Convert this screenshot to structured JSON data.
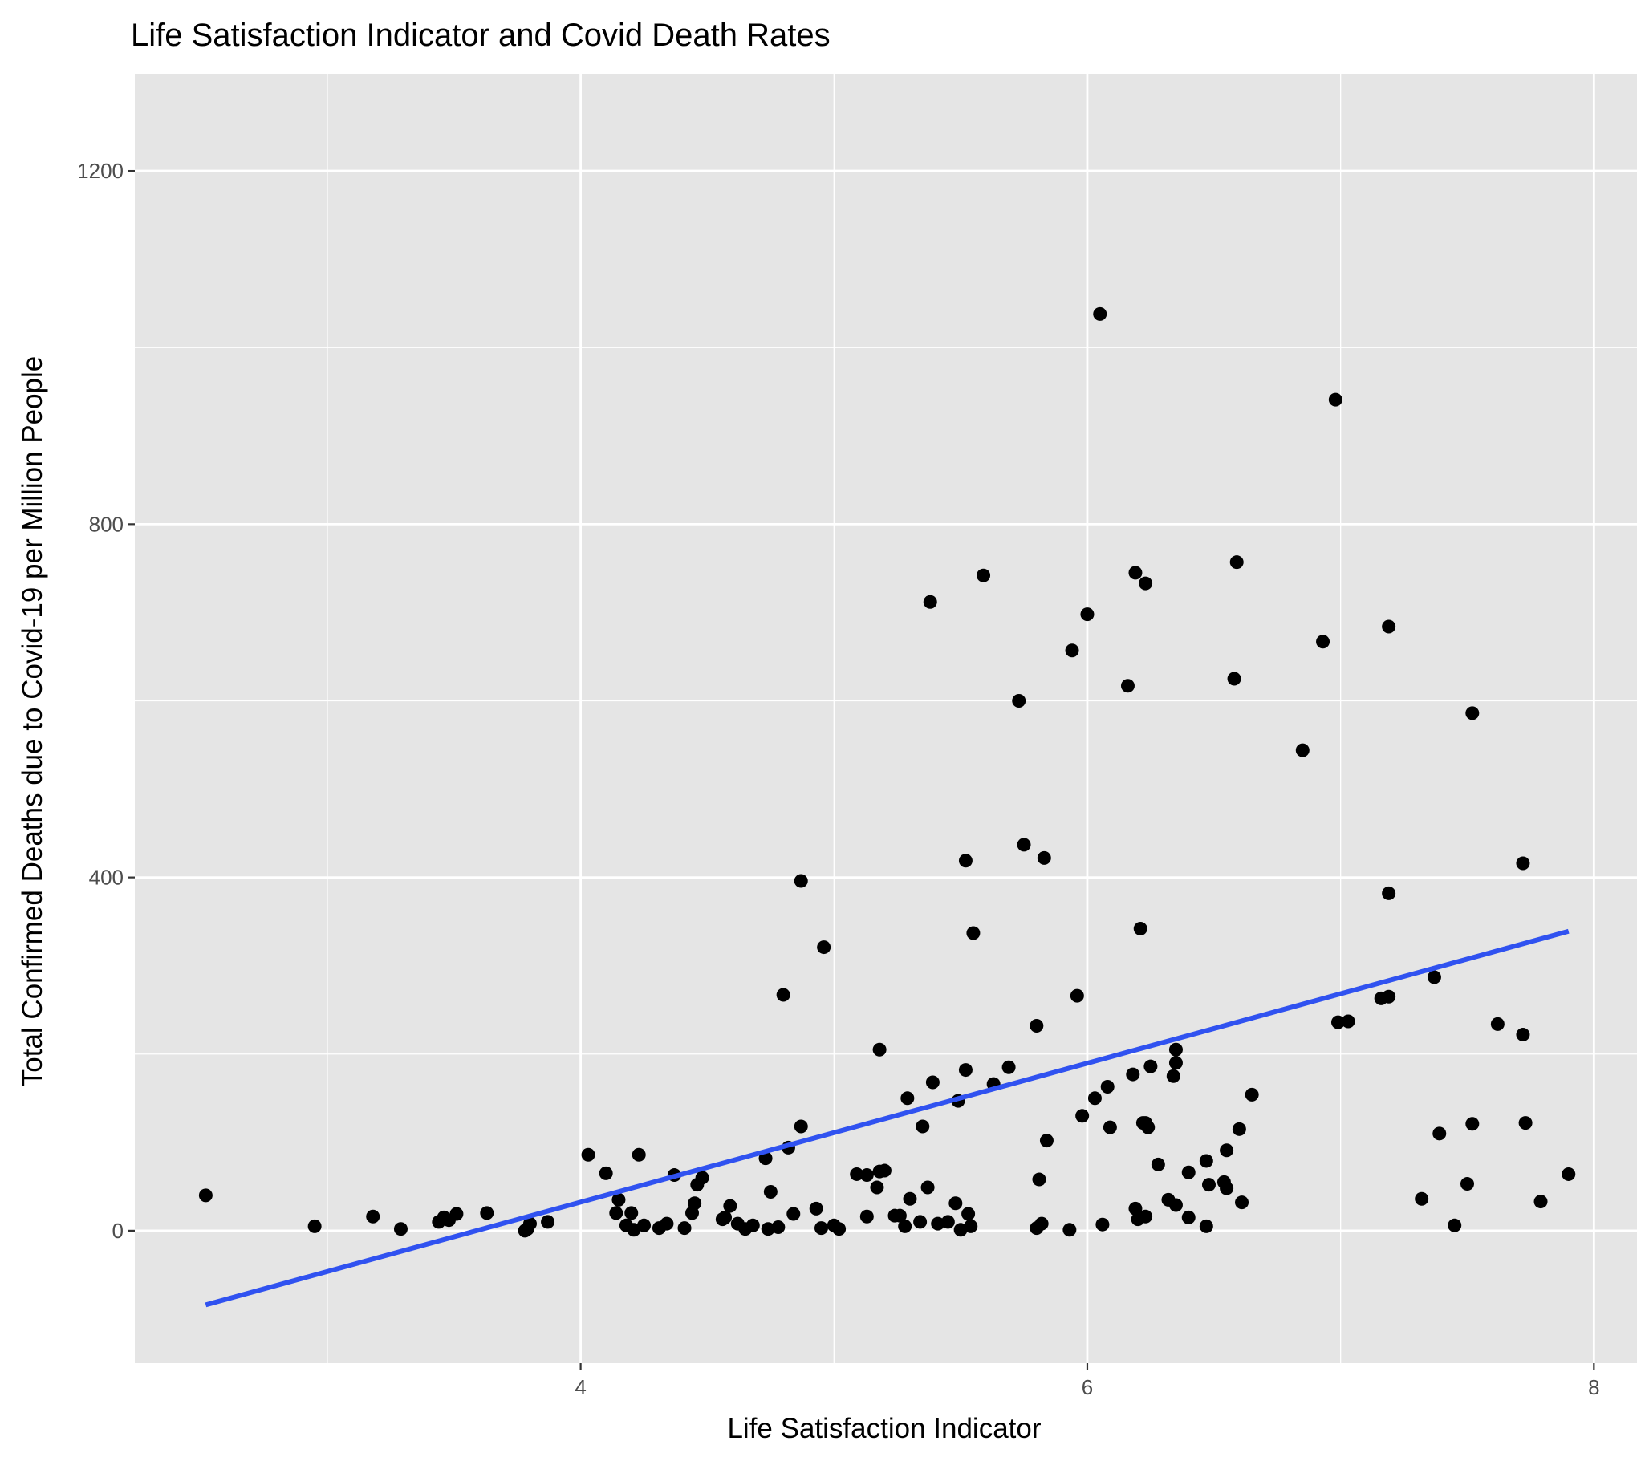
{
  "chart_data": {
    "type": "scatter",
    "title": "Life Satisfaction Indicator and Covid Death Rates",
    "xlabel": "Life Satisfaction Indicator",
    "ylabel": "Total Confirmed Deaths due to Covid-19 per Million People",
    "xlim": [
      2.24,
      8.17
    ],
    "ylim": [
      -150,
      1310
    ],
    "x_ticks": [
      4,
      6,
      8
    ],
    "y_ticks": [
      0,
      400,
      800,
      1200
    ],
    "x_minor": [
      3,
      5,
      7
    ],
    "y_minor": [
      200,
      600,
      1000
    ],
    "grid": true,
    "background": "#e5e5e5",
    "point_color": "#000000",
    "line_color": "#3052f0",
    "trend_line": {
      "x": [
        2.52,
        7.9
      ],
      "y": [
        -84,
        339
      ]
    },
    "points": [
      {
        "x": 2.52,
        "y": 40
      },
      {
        "x": 2.95,
        "y": 5
      },
      {
        "x": 3.18,
        "y": 16
      },
      {
        "x": 3.29,
        "y": 2
      },
      {
        "x": 3.44,
        "y": 10
      },
      {
        "x": 3.46,
        "y": 15
      },
      {
        "x": 3.48,
        "y": 12
      },
      {
        "x": 3.51,
        "y": 19
      },
      {
        "x": 3.63,
        "y": 20
      },
      {
        "x": 3.78,
        "y": 0
      },
      {
        "x": 3.79,
        "y": 2
      },
      {
        "x": 3.8,
        "y": 8
      },
      {
        "x": 3.87,
        "y": 10
      },
      {
        "x": 4.03,
        "y": 86
      },
      {
        "x": 4.1,
        "y": 65
      },
      {
        "x": 4.14,
        "y": 20
      },
      {
        "x": 4.15,
        "y": 35
      },
      {
        "x": 4.18,
        "y": 6
      },
      {
        "x": 4.2,
        "y": 20
      },
      {
        "x": 4.21,
        "y": 1
      },
      {
        "x": 4.23,
        "y": 86
      },
      {
        "x": 4.25,
        "y": 6
      },
      {
        "x": 4.31,
        "y": 3
      },
      {
        "x": 4.34,
        "y": 8
      },
      {
        "x": 4.37,
        "y": 63
      },
      {
        "x": 4.41,
        "y": 3
      },
      {
        "x": 4.44,
        "y": 20
      },
      {
        "x": 4.45,
        "y": 31
      },
      {
        "x": 4.46,
        "y": 52
      },
      {
        "x": 4.48,
        "y": 60
      },
      {
        "x": 4.56,
        "y": 13
      },
      {
        "x": 4.57,
        "y": 15
      },
      {
        "x": 4.59,
        "y": 28
      },
      {
        "x": 4.62,
        "y": 8
      },
      {
        "x": 4.65,
        "y": 2
      },
      {
        "x": 4.68,
        "y": 6
      },
      {
        "x": 4.73,
        "y": 82
      },
      {
        "x": 4.74,
        "y": 2
      },
      {
        "x": 4.75,
        "y": 44
      },
      {
        "x": 4.78,
        "y": 4
      },
      {
        "x": 4.8,
        "y": 267
      },
      {
        "x": 4.82,
        "y": 94
      },
      {
        "x": 4.84,
        "y": 19
      },
      {
        "x": 4.87,
        "y": 118
      },
      {
        "x": 4.87,
        "y": 396
      },
      {
        "x": 4.93,
        "y": 25
      },
      {
        "x": 4.95,
        "y": 3
      },
      {
        "x": 4.96,
        "y": 321
      },
      {
        "x": 5.0,
        "y": 6
      },
      {
        "x": 5.02,
        "y": 2
      },
      {
        "x": 5.09,
        "y": 64
      },
      {
        "x": 5.13,
        "y": 16
      },
      {
        "x": 5.13,
        "y": 63
      },
      {
        "x": 5.17,
        "y": 49
      },
      {
        "x": 5.18,
        "y": 205
      },
      {
        "x": 5.18,
        "y": 67
      },
      {
        "x": 5.2,
        "y": 68
      },
      {
        "x": 5.24,
        "y": 17
      },
      {
        "x": 5.26,
        "y": 17
      },
      {
        "x": 5.28,
        "y": 5
      },
      {
        "x": 5.29,
        "y": 150
      },
      {
        "x": 5.3,
        "y": 36
      },
      {
        "x": 5.34,
        "y": 10
      },
      {
        "x": 5.35,
        "y": 118
      },
      {
        "x": 5.37,
        "y": 49
      },
      {
        "x": 5.38,
        "y": 712
      },
      {
        "x": 5.39,
        "y": 168
      },
      {
        "x": 5.41,
        "y": 8
      },
      {
        "x": 5.45,
        "y": 10
      },
      {
        "x": 5.48,
        "y": 31
      },
      {
        "x": 5.49,
        "y": 147
      },
      {
        "x": 5.5,
        "y": 1
      },
      {
        "x": 5.52,
        "y": 182
      },
      {
        "x": 5.52,
        "y": 419
      },
      {
        "x": 5.53,
        "y": 19
      },
      {
        "x": 5.54,
        "y": 5
      },
      {
        "x": 5.55,
        "y": 337
      },
      {
        "x": 5.59,
        "y": 742
      },
      {
        "x": 5.63,
        "y": 166
      },
      {
        "x": 5.69,
        "y": 185
      },
      {
        "x": 5.73,
        "y": 600
      },
      {
        "x": 5.75,
        "y": 437
      },
      {
        "x": 5.8,
        "y": 232
      },
      {
        "x": 5.8,
        "y": 3
      },
      {
        "x": 5.81,
        "y": 58
      },
      {
        "x": 5.82,
        "y": 8
      },
      {
        "x": 5.83,
        "y": 422
      },
      {
        "x": 5.84,
        "y": 102
      },
      {
        "x": 5.93,
        "y": 1
      },
      {
        "x": 5.94,
        "y": 657
      },
      {
        "x": 5.96,
        "y": 266
      },
      {
        "x": 5.98,
        "y": 130
      },
      {
        "x": 6.0,
        "y": 698
      },
      {
        "x": 6.03,
        "y": 150
      },
      {
        "x": 6.05,
        "y": 1038
      },
      {
        "x": 6.06,
        "y": 7
      },
      {
        "x": 6.08,
        "y": 163
      },
      {
        "x": 6.09,
        "y": 117
      },
      {
        "x": 6.16,
        "y": 617
      },
      {
        "x": 6.18,
        "y": 177
      },
      {
        "x": 6.19,
        "y": 745
      },
      {
        "x": 6.19,
        "y": 25
      },
      {
        "x": 6.2,
        "y": 13
      },
      {
        "x": 6.21,
        "y": 342
      },
      {
        "x": 6.22,
        "y": 122
      },
      {
        "x": 6.23,
        "y": 733
      },
      {
        "x": 6.23,
        "y": 16
      },
      {
        "x": 6.23,
        "y": 122
      },
      {
        "x": 6.24,
        "y": 117
      },
      {
        "x": 6.25,
        "y": 186
      },
      {
        "x": 6.28,
        "y": 75
      },
      {
        "x": 6.32,
        "y": 35
      },
      {
        "x": 6.34,
        "y": 175
      },
      {
        "x": 6.35,
        "y": 29
      },
      {
        "x": 6.35,
        "y": 205
      },
      {
        "x": 6.35,
        "y": 190
      },
      {
        "x": 6.4,
        "y": 66
      },
      {
        "x": 6.4,
        "y": 15
      },
      {
        "x": 6.47,
        "y": 79
      },
      {
        "x": 6.47,
        "y": 5
      },
      {
        "x": 6.48,
        "y": 52
      },
      {
        "x": 6.54,
        "y": 55
      },
      {
        "x": 6.55,
        "y": 48
      },
      {
        "x": 6.55,
        "y": 91
      },
      {
        "x": 6.58,
        "y": 625
      },
      {
        "x": 6.59,
        "y": 757
      },
      {
        "x": 6.6,
        "y": 115
      },
      {
        "x": 6.61,
        "y": 32
      },
      {
        "x": 6.65,
        "y": 154
      },
      {
        "x": 6.85,
        "y": 544
      },
      {
        "x": 6.93,
        "y": 667
      },
      {
        "x": 6.98,
        "y": 941
      },
      {
        "x": 6.99,
        "y": 236
      },
      {
        "x": 7.03,
        "y": 237
      },
      {
        "x": 7.16,
        "y": 263
      },
      {
        "x": 7.19,
        "y": 265
      },
      {
        "x": 7.19,
        "y": 684
      },
      {
        "x": 7.19,
        "y": 382
      },
      {
        "x": 7.32,
        "y": 36
      },
      {
        "x": 7.37,
        "y": 287
      },
      {
        "x": 7.39,
        "y": 110
      },
      {
        "x": 7.45,
        "y": 6
      },
      {
        "x": 7.5,
        "y": 53
      },
      {
        "x": 7.52,
        "y": 586
      },
      {
        "x": 7.52,
        "y": 121
      },
      {
        "x": 7.62,
        "y": 234
      },
      {
        "x": 7.72,
        "y": 222
      },
      {
        "x": 7.72,
        "y": 416
      },
      {
        "x": 7.73,
        "y": 122
      },
      {
        "x": 7.79,
        "y": 33
      },
      {
        "x": 7.9,
        "y": 64
      }
    ]
  }
}
